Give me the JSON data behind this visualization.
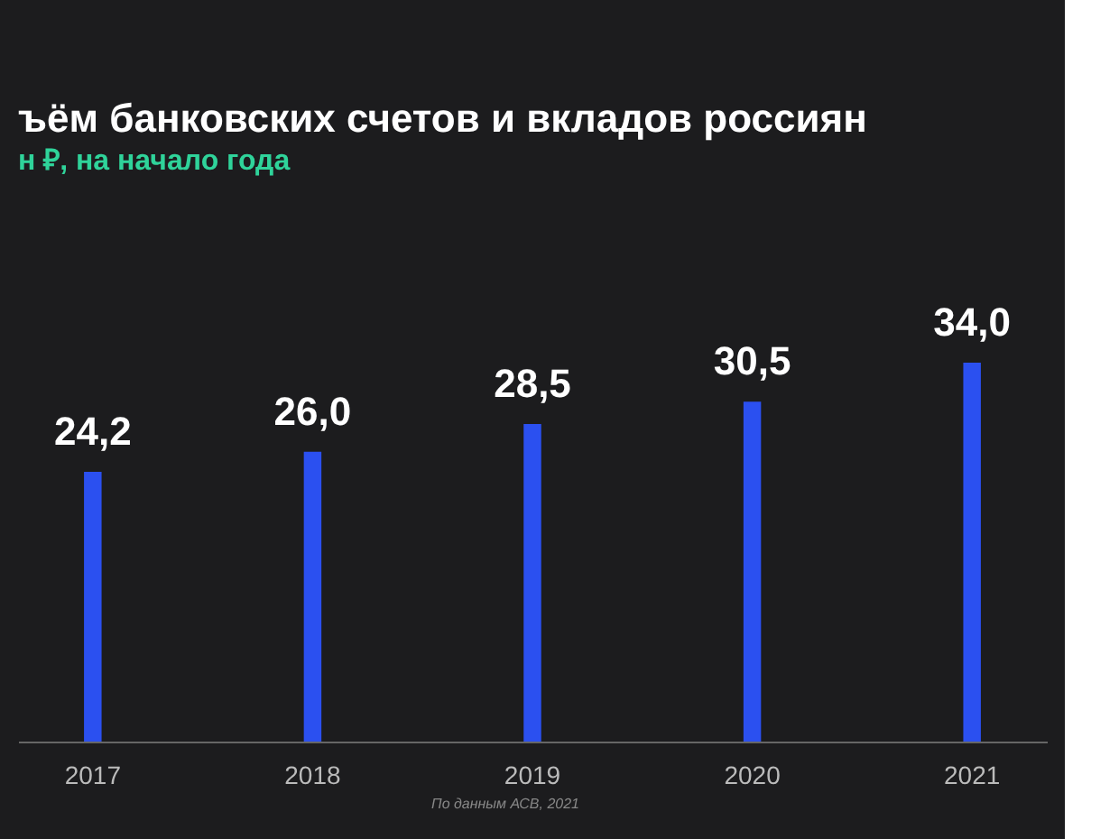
{
  "chart_data": {
    "type": "bar",
    "title": "ъём банковских счетов и вкладов россиян",
    "subtitle": "н ₽, на начало года",
    "categories": [
      "2017",
      "2018",
      "2019",
      "2020",
      "2021"
    ],
    "values": [
      24.2,
      26.0,
      28.5,
      30.5,
      34.0
    ],
    "value_labels": [
      "24,2",
      "26,0",
      "28,5",
      "30,5",
      "34,0"
    ],
    "color": "#2b50f0",
    "grid": false,
    "tick_labels": "x",
    "annotations": [
      "По данным АСВ, 2021"
    ]
  }
}
